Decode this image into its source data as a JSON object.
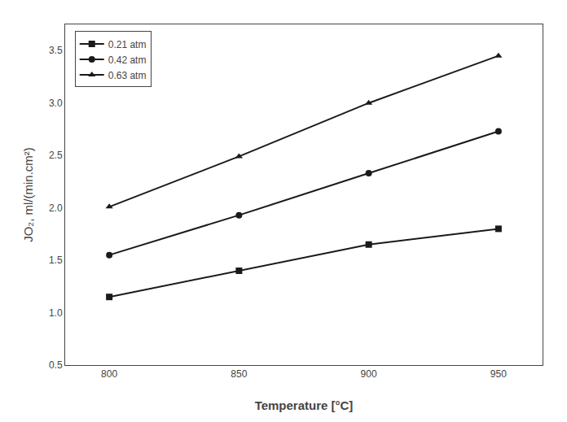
{
  "chart_data": {
    "type": "line",
    "x": [
      800,
      850,
      900,
      950
    ],
    "series": [
      {
        "name": "0.21 atm",
        "values": [
          1.15,
          1.4,
          1.65,
          1.8
        ],
        "marker": "square",
        "color": "#1a1a1a"
      },
      {
        "name": "0.42 atm",
        "values": [
          1.55,
          1.93,
          2.33,
          2.73
        ],
        "marker": "circle",
        "color": "#1a1a1a"
      },
      {
        "name": "0.63 atm",
        "values": [
          2.01,
          2.49,
          3.0,
          3.45
        ],
        "marker": "triangle-up",
        "color": "#1a1a1a"
      }
    ],
    "xlabel": "Temperature [°C]",
    "ylabel": "JO₂, ml/(min.cm²)",
    "xlim": [
      783,
      967
    ],
    "xticks": [
      800,
      850,
      900,
      950
    ],
    "ylim": [
      0.5,
      3.75
    ],
    "yticks": [
      0.5,
      {
        "value": 1,
        "label": "1.0"
      },
      1.5,
      {
        "value": 2,
        "label": "2.0"
      },
      2.5,
      {
        "value": 3,
        "label": "3.0"
      },
      3.5
    ],
    "grid": false,
    "legend": "upper left"
  }
}
